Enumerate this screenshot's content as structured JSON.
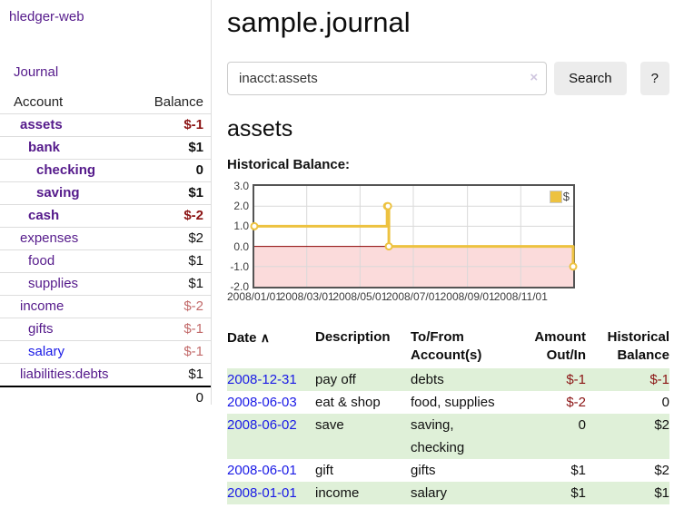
{
  "app": {
    "title": "hledger-web"
  },
  "sidebar": {
    "journal_link": "Journal",
    "accounts": {
      "headers": [
        "Account",
        "Balance"
      ],
      "rows": [
        {
          "name": "assets",
          "balance": "$-1",
          "depth": 1,
          "in_account": true
        },
        {
          "name": "bank",
          "balance": "$1",
          "depth": 2,
          "in_account": true
        },
        {
          "name": "checking",
          "balance": "0",
          "depth": 3,
          "in_account": true
        },
        {
          "name": "saving",
          "balance": "$1",
          "depth": 3,
          "in_account": true
        },
        {
          "name": "cash",
          "balance": "$-2",
          "depth": 2,
          "in_account": true
        },
        {
          "name": "expenses",
          "balance": "$2",
          "depth": 1,
          "in_account": false
        },
        {
          "name": "food",
          "balance": "$1",
          "depth": 2,
          "in_account": false
        },
        {
          "name": "supplies",
          "balance": "$1",
          "depth": 2,
          "in_account": false
        },
        {
          "name": "income",
          "balance": "$-2",
          "depth": 1,
          "in_account": false
        },
        {
          "name": "gifts",
          "balance": "$-1",
          "depth": 2,
          "in_account": false
        },
        {
          "name": "salary",
          "balance": "$-1",
          "depth": 2,
          "in_account": false,
          "unvisited": true
        },
        {
          "name": "liabilities:debts",
          "balance": "$1",
          "depth": 1,
          "in_account": false
        }
      ],
      "total": "0"
    }
  },
  "main": {
    "title": "sample.journal",
    "search": {
      "value": "inacct:assets",
      "clear_icon": "×",
      "button_label": "Search",
      "help_label": "?"
    },
    "account_heading": "assets",
    "register": {
      "headers": {
        "date": "Date",
        "sort_icon": "∧",
        "description": "Description",
        "accounts": "To/From Account(s)",
        "amount": "Amount Out/In",
        "balance": "Historical Balance"
      },
      "rows": [
        {
          "date": "2008-12-31",
          "description": "pay off",
          "accounts": "debts",
          "amount": "$-1",
          "balance": "$-1"
        },
        {
          "date": "2008-06-03",
          "description": "eat & shop",
          "accounts": "food, supplies",
          "amount": "$-2",
          "balance": "0"
        },
        {
          "date": "2008-06-02",
          "description": "save",
          "accounts": "saving, checking",
          "amount": "0",
          "balance": "$2"
        },
        {
          "date": "2008-06-01",
          "description": "gift",
          "accounts": "gifts",
          "amount": "$1",
          "balance": "$2"
        },
        {
          "date": "2008-01-01",
          "description": "income",
          "accounts": "salary",
          "amount": "$1",
          "balance": "$1"
        }
      ]
    }
  },
  "chart_data": {
    "type": "line",
    "title": "Historical Balance:",
    "step": true,
    "series": [
      {
        "name": "$",
        "color": "#edc240",
        "points": [
          [
            "2008-01-01",
            1
          ],
          [
            "2008-06-01",
            2
          ],
          [
            "2008-06-02",
            2
          ],
          [
            "2008-06-03",
            0
          ],
          [
            "2008-12-31",
            -1
          ]
        ]
      }
    ],
    "xlim": [
      "2008-01-01",
      "2008-12-31"
    ],
    "ylim": [
      -2,
      3
    ],
    "x_ticks": [
      "2008/01/01",
      "2008/03/01",
      "2008/05/01",
      "2008/07/01",
      "2008/09/01",
      "2008/11/01"
    ],
    "y_ticks": [
      "3.0",
      "2.0",
      "1.0",
      "0.0",
      "-1.0",
      "-2.0"
    ],
    "legend_position": "top-right",
    "grid": true,
    "grid_color": "#d9d9d9",
    "zero_line_color": "#8b0000",
    "negative_region_color": "#fbdbdb"
  }
}
